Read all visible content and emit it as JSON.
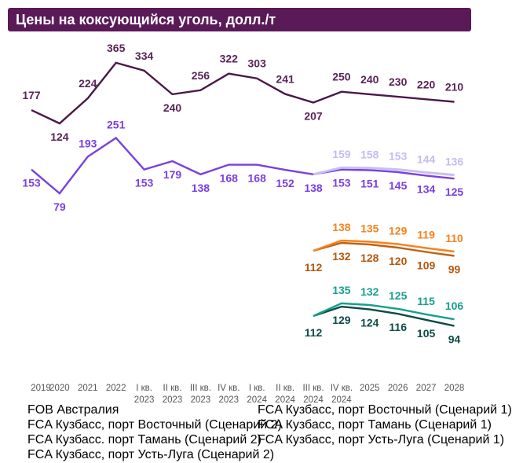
{
  "chart_data": {
    "type": "line",
    "title": "Цены на коксующийся уголь, долл./т",
    "categories": [
      "2019",
      "2020",
      "2021",
      "2022",
      "I кв. 2023",
      "II кв. 2023",
      "III кв. 2023",
      "IV кв. 2023",
      "I кв. 2024",
      "II кв. 2024",
      "III кв. 2024",
      "IV кв. 2024",
      "2025",
      "2026",
      "2027",
      "2028"
    ],
    "category_lines": [
      [
        "2019",
        ""
      ],
      [
        "2020",
        ""
      ],
      [
        "2021",
        ""
      ],
      [
        "2022",
        ""
      ],
      [
        "I кв.",
        "2023"
      ],
      [
        "II кв.",
        "2023"
      ],
      [
        "III кв.",
        "2023"
      ],
      [
        "IV кв.",
        "2023"
      ],
      [
        "I кв.",
        "2024"
      ],
      [
        "II кв.",
        "2024"
      ],
      [
        "III кв.",
        "2024"
      ],
      [
        "IV кв.",
        "2024"
      ],
      [
        "2025",
        ""
      ],
      [
        "2026",
        ""
      ],
      [
        "2027",
        ""
      ],
      [
        "2028",
        ""
      ]
    ],
    "grid": false,
    "legend_position": "bottom",
    "series": [
      {
        "name": "FOB Австралия",
        "color": "#4a1849",
        "values": [
          177,
          124,
          224,
          365,
          334,
          240,
          256,
          322,
          303,
          241,
          207,
          250,
          240,
          230,
          220,
          210
        ]
      },
      {
        "name": "FCA Кузбасс, порт Восточный  (Сценарий 1)",
        "color": "#7a3fe0",
        "values": [
          153,
          79,
          193,
          251,
          153,
          179,
          138,
          168,
          168,
          152,
          138,
          153,
          151,
          145,
          134,
          125
        ]
      },
      {
        "name": "FCA Кузбасс, порт Восточный (Сценарий 2)",
        "color": "#c9c0f0",
        "values": [
          null,
          null,
          null,
          null,
          null,
          null,
          null,
          null,
          null,
          null,
          138,
          159,
          158,
          153,
          144,
          136
        ]
      },
      {
        "name": "FCA Кузбасс, порт Тамань (Сценарий 1)",
        "color": "#c0600f",
        "values": [
          null,
          null,
          null,
          null,
          null,
          null,
          null,
          null,
          null,
          null,
          112,
          132,
          128,
          120,
          109,
          99
        ]
      },
      {
        "name": "FCA Кузбасс. порт Тамань (Сценарий 2)",
        "color": "#f5821f",
        "values": [
          null,
          null,
          null,
          null,
          null,
          null,
          null,
          null,
          null,
          null,
          112,
          138,
          135,
          129,
          119,
          110
        ]
      },
      {
        "name": "FCA Кузбасс, порт Усть-Луга (Сценарий 1)",
        "color": "#0c4b45",
        "values": [
          null,
          null,
          null,
          null,
          null,
          null,
          null,
          null,
          null,
          null,
          112,
          129,
          124,
          116,
          105,
          94
        ]
      },
      {
        "name": "FCA Кузбасс, порт Усть-Луга (Сценарий 2)",
        "color": "#17a08e",
        "values": [
          null,
          null,
          null,
          null,
          null,
          null,
          null,
          null,
          null,
          null,
          112,
          135,
          132,
          125,
          115,
          106
        ]
      }
    ]
  }
}
